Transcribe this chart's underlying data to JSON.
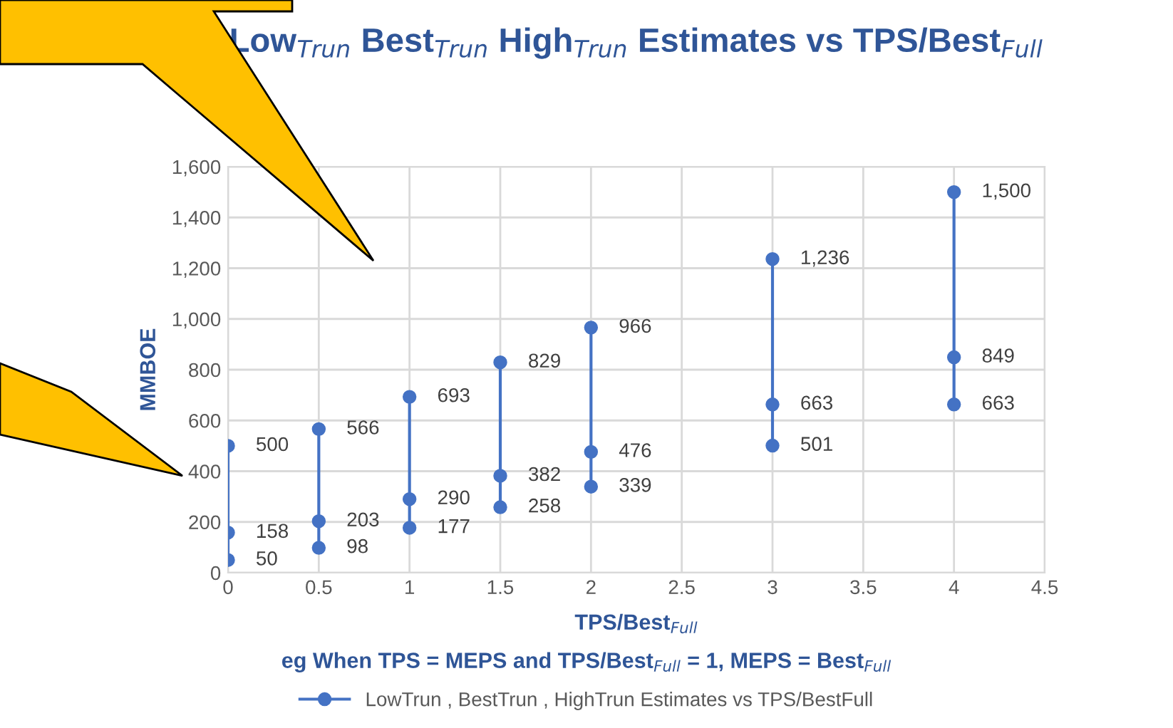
{
  "chart_data": {
    "type": "line",
    "title": "Low$_{Trun}$ Best$_{Trun}$ High$_{Trun}$ Estimates vs TPS/Best$_{Full}$",
    "xlabel": "TPS/Best$_{Full}$",
    "ylabel": "MMBOE",
    "annotations": [
      "eg When TPS = MEPS and TPS/Best$_{Full}$ = 1, MEPS = Best$_{Full}$"
    ],
    "series": [
      {
        "name": "LowTrun , BestTrun , HighTrun Estimates vs TPS/BestFull",
        "color": "#4472c4",
        "x": [
          0,
          0,
          0
        ],
        "values": [
          50,
          158,
          500
        ],
        "value_labels": [
          "50",
          "158",
          "500"
        ]
      },
      {
        "color": "#4472c4",
        "x": [
          0.5,
          0.5,
          0.5
        ],
        "values": [
          98,
          203,
          566
        ],
        "value_labels": [
          "98",
          "203",
          "566"
        ]
      },
      {
        "color": "#4472c4",
        "x": [
          1,
          1,
          1
        ],
        "values": [
          177,
          290,
          693
        ],
        "value_labels": [
          "177",
          "290",
          "693"
        ]
      },
      {
        "color": "#4472c4",
        "x": [
          1.5,
          1.5,
          1.5
        ],
        "values": [
          258,
          382,
          829
        ],
        "value_labels": [
          "258",
          "382",
          "829"
        ]
      },
      {
        "color": "#4472c4",
        "x": [
          2,
          2,
          2
        ],
        "values": [
          339,
          476,
          966
        ],
        "value_labels": [
          "339",
          "476",
          "966"
        ]
      },
      {
        "color": "#4472c4",
        "x": [
          3,
          3,
          3
        ],
        "values": [
          501,
          663,
          1236
        ],
        "value_labels": [
          "501",
          "663",
          "1,236"
        ]
      },
      {
        "color": "#4472c4",
        "x": [
          4,
          4,
          4
        ],
        "values": [
          663,
          849,
          1500
        ],
        "value_labels": [
          "663",
          "849",
          "1,500"
        ]
      }
    ],
    "xlim": [
      0,
      4.5
    ],
    "xticks": [
      0,
      0.5,
      1,
      1.5,
      2,
      2.5,
      3,
      3.5,
      4,
      4.5
    ],
    "ylim": [
      0,
      1600
    ],
    "yticks": [
      0,
      200,
      400,
      600,
      800,
      {
        "value": 1000,
        "label": "1,000"
      },
      {
        "value": 1200,
        "label": "1,200"
      },
      {
        "value": 1400,
        "label": "1,400"
      },
      {
        "value": 1600,
        "label": "1,600"
      }
    ],
    "grid": true,
    "legend": "bottom",
    "marker": "circle",
    "line_style": "solid"
  }
}
